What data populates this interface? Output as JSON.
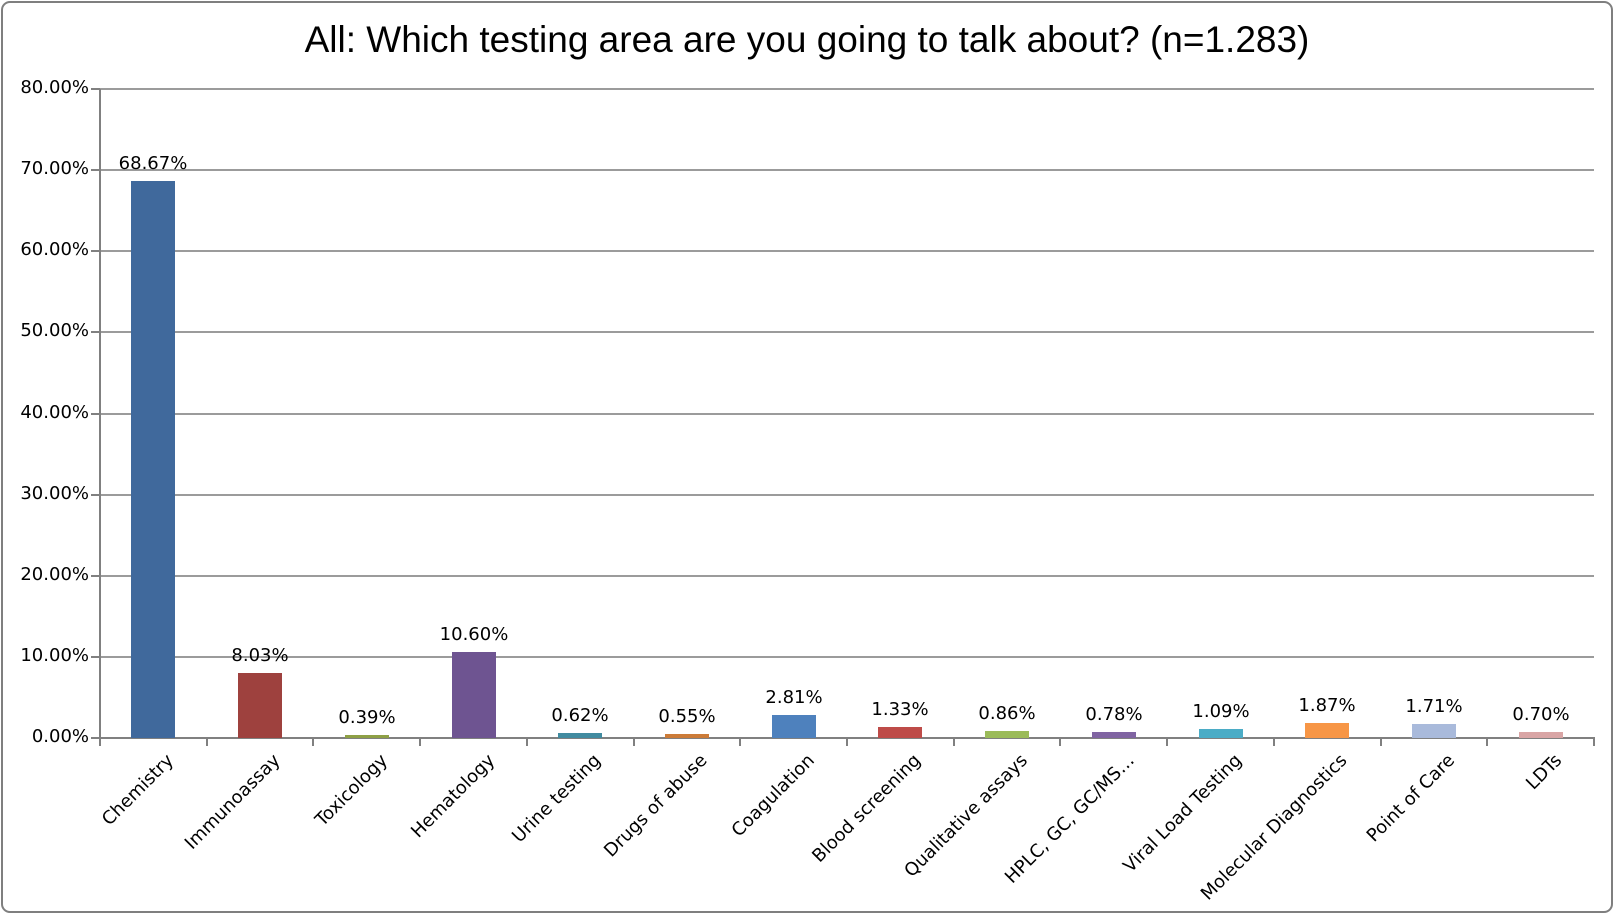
{
  "chart_data": {
    "type": "bar",
    "title": "All: Which testing area are you going to talk about? (n=1.283)",
    "xlabel": "",
    "ylabel": "",
    "categories": [
      "Chemistry",
      "Immunoassay",
      "Toxicology",
      "Hematology",
      "Urine testing",
      "Drugs of abuse",
      "Coagulation",
      "Blood screening",
      "Qualitative assays",
      "HPLC, GC, GC/MS…",
      "Viral Load Testing",
      "Molecular Diagnostics",
      "Point of Care",
      "LDTs"
    ],
    "values": [
      68.67,
      8.03,
      0.39,
      10.6,
      0.62,
      0.55,
      2.81,
      1.33,
      0.86,
      0.78,
      1.09,
      1.87,
      1.71,
      0.7
    ],
    "value_labels": [
      "68.67%",
      "8.03%",
      "0.39%",
      "10.60%",
      "0.62%",
      "0.55%",
      "2.81%",
      "1.33%",
      "0.86%",
      "0.78%",
      "1.09%",
      "1.87%",
      "1.71%",
      "0.70%"
    ],
    "bar_colors": [
      "#40699C",
      "#9E413E",
      "#8EA045",
      "#6E5491",
      "#418BA0",
      "#CC7B38",
      "#4E81BD",
      "#BE4B48",
      "#9BBB59",
      "#8064A2",
      "#4BACC6",
      "#F79646",
      "#A9BADB",
      "#D9A5A5"
    ],
    "ylim": [
      0,
      80
    ],
    "y_ticks": [
      "0.00%",
      "10.00%",
      "20.00%",
      "30.00%",
      "40.00%",
      "50.00%",
      "60.00%",
      "70.00%",
      "80.00%"
    ],
    "grid": true,
    "legend": "none",
    "colors": {
      "gridline": "#9B9B9B",
      "axis": "#808080",
      "frame_border": "#7F7F7F",
      "background": "#FFFFFF",
      "text": "#000000"
    }
  }
}
